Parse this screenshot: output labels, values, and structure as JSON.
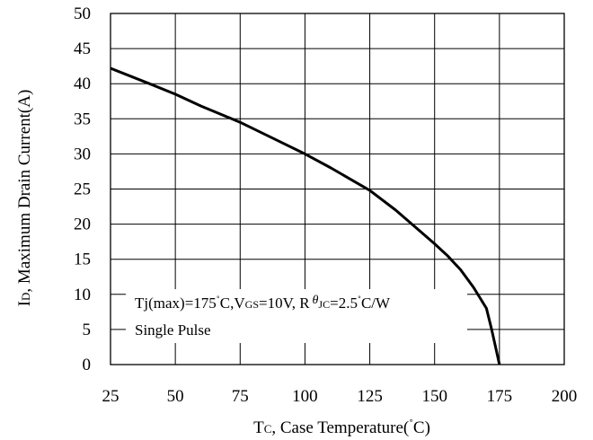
{
  "chart_data": {
    "type": "line",
    "xlabel_main": "T",
    "xlabel_sub": "C",
    "xlabel_rest": ", Case Temperature(",
    "xlabel_degree": "˚",
    "xlabel_end": "C)",
    "ylabel_main": "I",
    "ylabel_sub": "D",
    "ylabel_rest": ", Maximum Drain Current(A)",
    "xlim": [
      25,
      200
    ],
    "ylim": [
      0,
      50
    ],
    "xticks": [
      "25",
      "50",
      "75",
      "100",
      "125",
      "150",
      "175",
      "200"
    ],
    "yticks": [
      "0",
      "5",
      "10",
      "15",
      "20",
      "25",
      "30",
      "35",
      "40",
      "45",
      "50"
    ],
    "grid": true,
    "series": [
      {
        "x": [
          25,
          40,
          50,
          60,
          75,
          90,
          100,
          110,
          125,
          135,
          145,
          150,
          155,
          160,
          165,
          170,
          172,
          175
        ],
        "y": [
          42.2,
          40.0,
          38.5,
          36.8,
          34.5,
          31.8,
          30.0,
          28.0,
          24.8,
          22.0,
          18.8,
          17.2,
          15.5,
          13.5,
          11.0,
          8.0,
          5.0,
          0.0
        ]
      }
    ],
    "annotation": {
      "line1_a": "Tj(max)=175",
      "line1_deg": "˚",
      "line1_b": "C,V",
      "line1_sub": "GS",
      "line1_c": "=10V, R",
      "line1_theta": "θ",
      "line1_sub2": "JC",
      "line1_d": "=2.5",
      "line1_deg2": "˚",
      "line1_e": "C/W",
      "line2": "Single Pulse"
    },
    "line_color": "#000000",
    "grid_color": "#000000"
  }
}
